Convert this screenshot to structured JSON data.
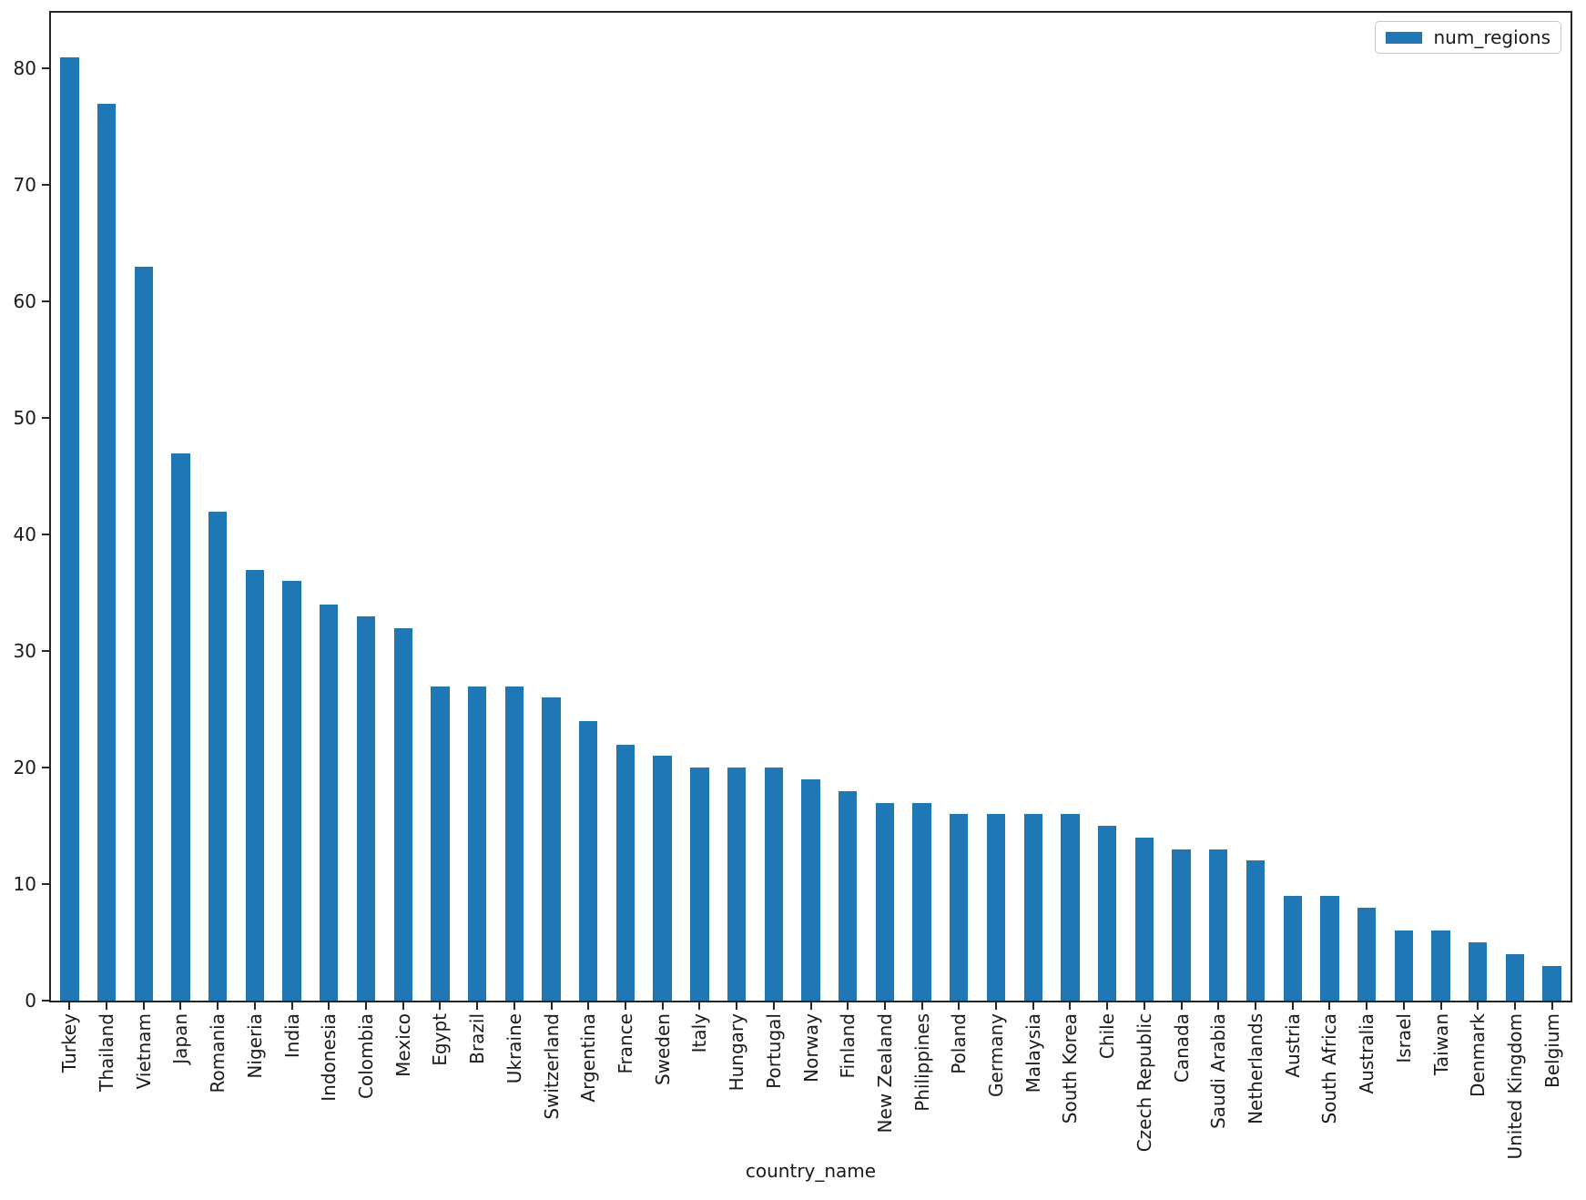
{
  "figure": {
    "background": "#ffffff",
    "text_color": "#1a1a1a",
    "spine_color": "#262626"
  },
  "legend": {
    "items": [
      {
        "label": "num_regions",
        "color": "#1f77b4"
      }
    ]
  },
  "chart_data": {
    "type": "bar",
    "title": "",
    "xlabel": "country_name",
    "ylabel": "",
    "series_name": "num_regions",
    "bar_color": "#1f77b4",
    "grid": false,
    "legend_position": "upper right",
    "ylim": [
      0,
      84.8
    ],
    "yticks": [
      0,
      10,
      20,
      30,
      40,
      50,
      60,
      70,
      80
    ],
    "categories": [
      "Turkey",
      "Thailand",
      "Vietnam",
      "Japan",
      "Romania",
      "Nigeria",
      "India",
      "Indonesia",
      "Colombia",
      "Mexico",
      "Egypt",
      "Brazil",
      "Ukraine",
      "Switzerland",
      "Argentina",
      "France",
      "Sweden",
      "Italy",
      "Hungary",
      "Portugal",
      "Norway",
      "Finland",
      "New Zealand",
      "Philippines",
      "Poland",
      "Germany",
      "Malaysia",
      "South Korea",
      "Chile",
      "Czech Republic",
      "Canada",
      "Saudi Arabia",
      "Netherlands",
      "Austria",
      "South Africa",
      "Australia",
      "Israel",
      "Taiwan",
      "Denmark",
      "United Kingdom",
      "Belgium"
    ],
    "values": [
      81,
      77,
      63,
      47,
      42,
      37,
      36,
      34,
      33,
      32,
      27,
      27,
      27,
      26,
      24,
      22,
      21,
      20,
      20,
      20,
      19,
      18,
      17,
      17,
      16,
      16,
      16,
      16,
      15,
      14,
      13,
      13,
      12,
      9,
      9,
      8,
      6,
      6,
      5,
      4,
      3
    ]
  }
}
